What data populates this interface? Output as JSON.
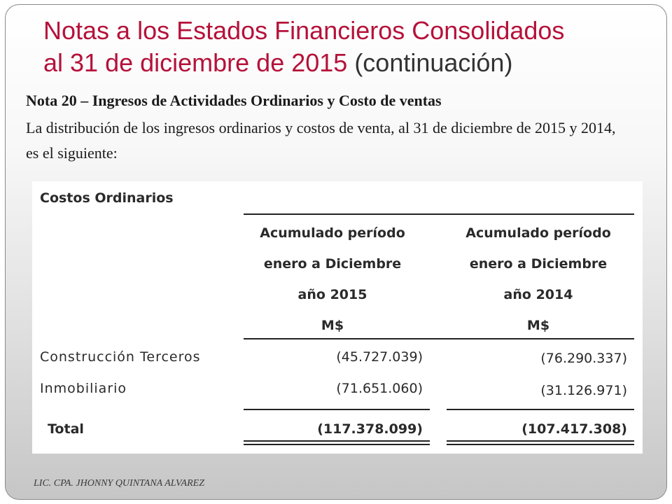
{
  "slide": {
    "title_line1": "Notas a los Estados Financieros Consolidados",
    "title_line2_main": "al 31 de diciembre de 2015 ",
    "title_line2_cont": "(continuación)",
    "note_heading": "Nota 20 – Ingresos de Actividades Ordinarios y Costo de ventas",
    "note_text": "La distribución de los ingresos ordinarios y costos de venta, al 31 de diciembre de 2015 y 2014, es el siguiente:",
    "footer": "LIC. CPA. JHONNY QUINTANA ALVAREZ"
  },
  "table": {
    "title": "Costos Ordinarios",
    "columns": [
      {
        "lines": [
          "Acumulado período",
          "enero a Diciembre",
          "año 2015",
          "M$"
        ]
      },
      {
        "lines": [
          "Acumulado período",
          "enero a Diciembre",
          "año 2014",
          "M$"
        ]
      }
    ],
    "rows": [
      {
        "label": "Construcción Terceros",
        "values": [
          "(45.727.039)",
          "(76.290.337)"
        ]
      },
      {
        "label": "Inmobiliario",
        "values": [
          "(71.651.060)",
          "(31.126.971)"
        ]
      }
    ],
    "total": {
      "label": "Total",
      "values": [
        "(117.378.099)",
        "(107.417.308)"
      ]
    }
  },
  "colors": {
    "title": "#b5123a",
    "title_cont": "#333333"
  }
}
